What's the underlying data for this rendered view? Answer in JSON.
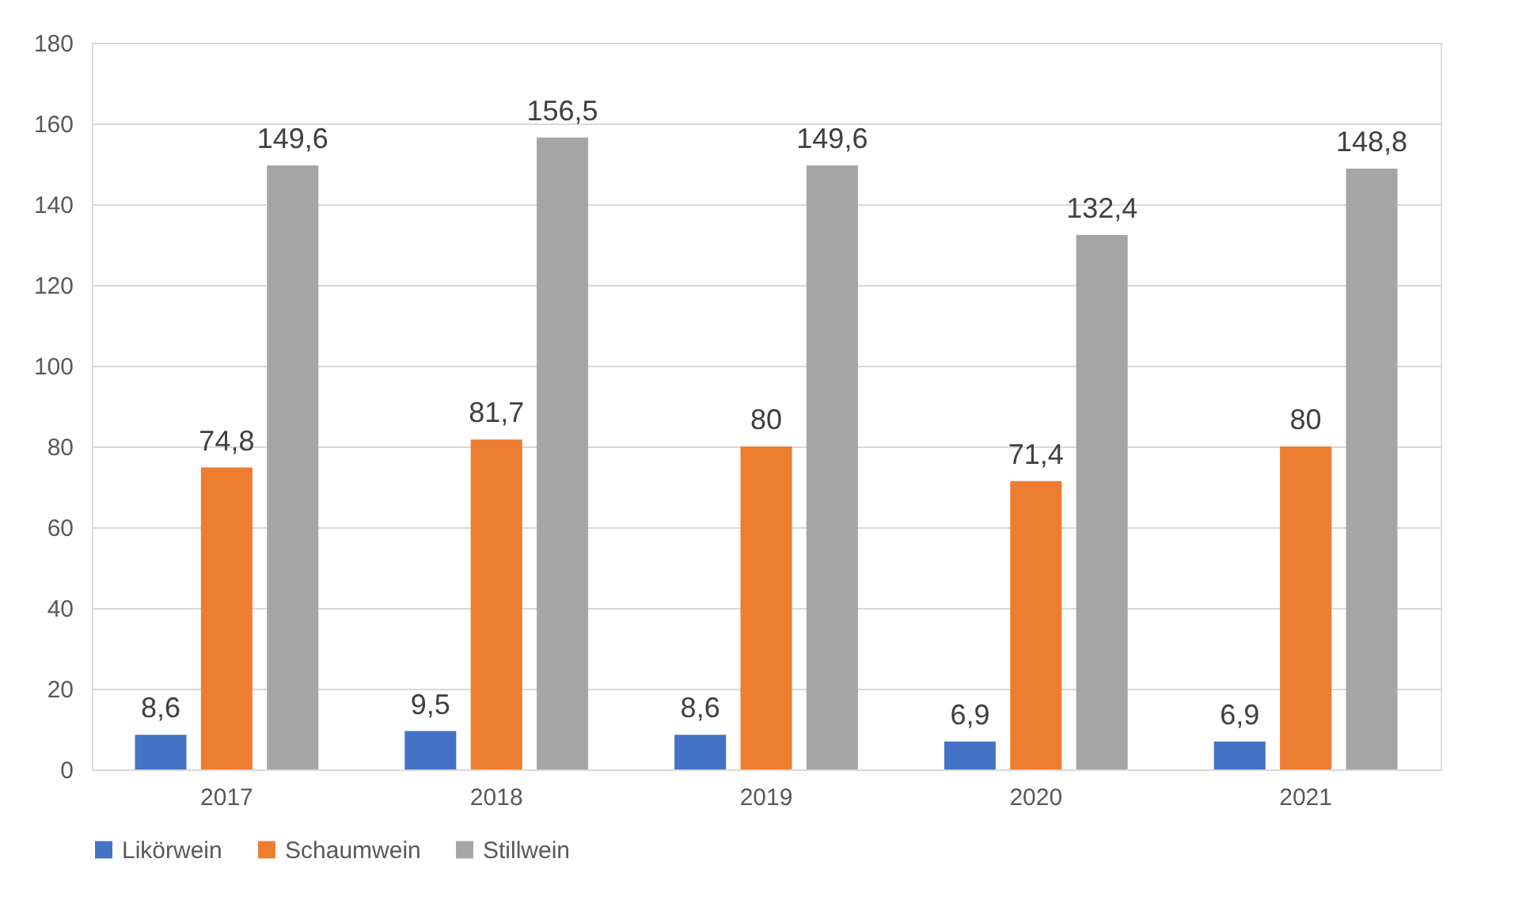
{
  "chart_data": {
    "type": "bar",
    "categories": [
      "2017",
      "2018",
      "2019",
      "2020",
      "2021"
    ],
    "series": [
      {
        "name": "Likörwein",
        "color": "#4472c4",
        "values": [
          8.6,
          9.5,
          8.6,
          6.9,
          6.9
        ],
        "value_labels": [
          "8,6",
          "9,5",
          "8,6",
          "6,9",
          "6,9"
        ]
      },
      {
        "name": "Schaumwein",
        "color": "#ed7d31",
        "values": [
          74.8,
          81.7,
          80,
          71.4,
          80
        ],
        "value_labels": [
          "74,8",
          "81,7",
          "80",
          "71,4",
          "80"
        ]
      },
      {
        "name": "Stillwein",
        "color": "#a5a5a5",
        "values": [
          149.6,
          156.5,
          149.6,
          132.4,
          148.8
        ],
        "value_labels": [
          "149,6",
          "156,5",
          "149,6",
          "132,4",
          "148,8"
        ]
      }
    ],
    "ylim": [
      0,
      180
    ],
    "yticks": [
      0,
      20,
      40,
      60,
      80,
      100,
      120,
      140,
      160,
      180
    ],
    "grid": "y",
    "legend": "bottom"
  }
}
